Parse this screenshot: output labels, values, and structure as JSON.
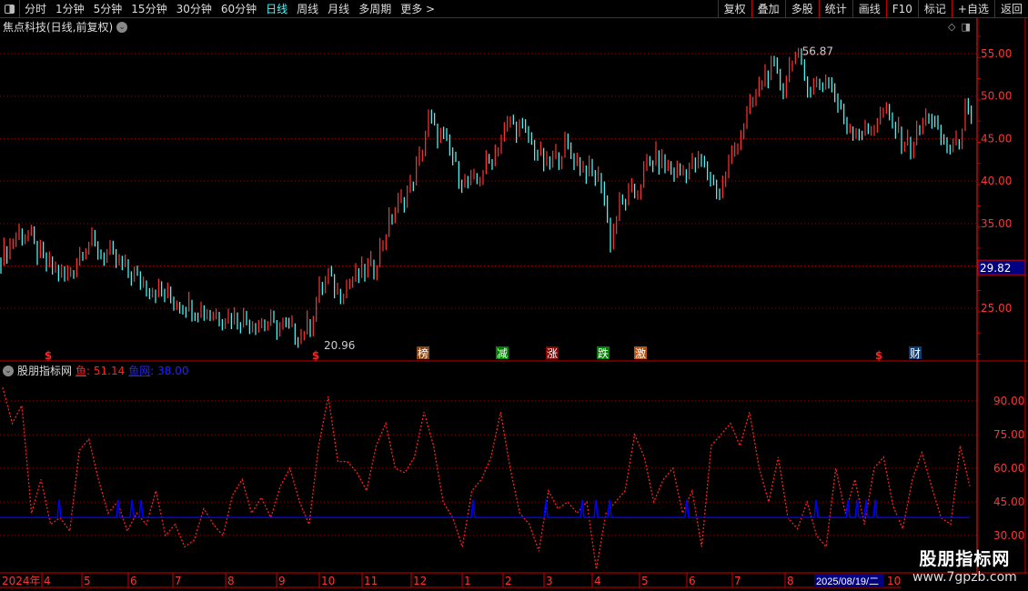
{
  "toolbar": {
    "periods": [
      "分时",
      "1分钟",
      "5分钟",
      "15分钟",
      "30分钟",
      "60分钟",
      "日线",
      "周线",
      "月线",
      "多周期",
      "更多 >"
    ],
    "active_period": "日线",
    "right_buttons": [
      "复权",
      "叠加",
      "多股",
      "统计",
      "画线",
      "F10",
      "标记",
      "+自选",
      "返回"
    ]
  },
  "stock": {
    "title": "焦点科技(日线,前复权)"
  },
  "price_axis": {
    "ticks": [
      "55.00",
      "50.00",
      "45.00",
      "40.00",
      "35.00",
      "25.00"
    ],
    "tick_values": [
      55,
      50,
      45,
      40,
      35,
      25
    ],
    "current_label": "29.82",
    "current_value": 29.82
  },
  "annotations": {
    "high": "56.87",
    "low": "20.96"
  },
  "colors": {
    "up": "#ff3333",
    "down": "#54ffff",
    "grid": "#990000",
    "axis": "#ff3333",
    "indicator_line": "#ff2020",
    "indicator_base": "#0000ff",
    "highlight_bg": "#000080"
  },
  "price_closes": [
    31,
    32.5,
    34,
    33.5,
    31.5,
    30,
    29.5,
    28.5,
    30,
    32.5,
    32.5,
    31.5,
    31,
    30,
    29.2,
    28.5,
    27.9,
    27.2,
    26.5,
    26,
    25.7,
    25.3,
    24.9,
    24.5,
    24.3,
    24.1,
    23.9,
    23.7,
    23.5,
    23.2,
    22.9,
    22.6,
    22.3,
    22,
    23.3,
    27,
    28.5,
    27,
    27.8,
    28.5,
    29.3,
    30,
    33,
    36,
    37.6,
    39.2,
    42.5,
    47,
    45.5,
    44,
    41.6,
    39.6,
    39.5,
    41.2,
    43,
    45,
    47,
    46,
    45,
    43.2,
    41.5,
    42.8,
    44,
    42.8,
    41.6,
    40.7,
    40,
    33,
    37,
    38,
    39,
    41.7,
    42.6,
    41.8,
    41,
    41.3,
    41.7,
    42,
    40.3,
    38.5,
    42,
    45,
    47.5,
    50,
    52.7,
    52.7,
    51,
    55,
    53,
    51,
    51.5,
    52,
    48.7,
    46.7,
    46.1,
    45.5,
    46.8,
    48,
    46.5,
    45,
    44,
    46,
    48,
    45.3,
    44,
    44,
    48,
    45.5
  ],
  "signals": [
    {
      "text": "$",
      "type": "dollar"
    },
    {
      "text": "$",
      "type": "dollar"
    },
    {
      "text": "榜",
      "type": "box",
      "color": "#8b4513"
    },
    {
      "text": "减",
      "type": "box",
      "color": "#008000"
    },
    {
      "text": "涨",
      "type": "box",
      "color": "#8b0000"
    },
    {
      "text": "跌",
      "type": "box",
      "color": "#008000"
    },
    {
      "text": "激",
      "type": "box",
      "color": "#b5500f"
    },
    {
      "text": "$",
      "type": "dollar"
    },
    {
      "text": "财",
      "type": "box",
      "color": "#103a70"
    }
  ],
  "indicator": {
    "name": "股朋指标网",
    "line1_label": "鱼",
    "line1_value": ": 51.14",
    "line2_label": "鱼网",
    "line2_value": ": 38.00",
    "ticks": [
      "90.00",
      "75.00",
      "60.00",
      "45.00",
      "30.00"
    ],
    "tick_values": [
      90,
      75,
      60,
      45,
      30
    ],
    "line1": [
      96,
      80,
      88,
      40,
      55,
      35,
      38,
      32,
      68,
      73,
      55,
      40,
      45,
      32,
      40,
      35,
      50,
      30,
      35,
      25,
      28,
      42,
      35,
      30,
      48,
      55,
      40,
      47,
      38,
      52,
      60,
      45,
      35,
      70,
      92,
      63,
      63,
      58,
      50,
      70,
      80,
      60,
      58,
      65,
      85,
      70,
      45,
      38,
      25,
      50,
      55,
      65,
      85,
      60,
      40,
      35,
      23,
      50,
      42,
      45,
      40,
      45,
      15,
      40,
      45,
      50,
      75,
      65,
      45,
      55,
      60,
      40,
      50,
      25,
      70,
      75,
      80,
      70,
      85,
      60,
      45,
      65,
      38,
      33,
      45,
      30,
      25,
      60,
      40,
      55,
      35,
      60,
      65,
      43,
      33,
      55,
      67,
      52,
      38,
      35,
      70,
      52
    ],
    "line2_base": 38,
    "line2_spike": 46
  },
  "date_axis": {
    "labels": [
      "2024年",
      "4",
      "5",
      "6",
      "7",
      "8",
      "9",
      "10",
      "11",
      "12",
      "1",
      "2",
      "3",
      "4",
      "5",
      "6",
      "7",
      "8"
    ],
    "cursor_date": "2025/08/19/二",
    "cut_label": "10"
  },
  "watermark": {
    "name": "股朋指标网",
    "url": "www.7gpzb.com"
  }
}
